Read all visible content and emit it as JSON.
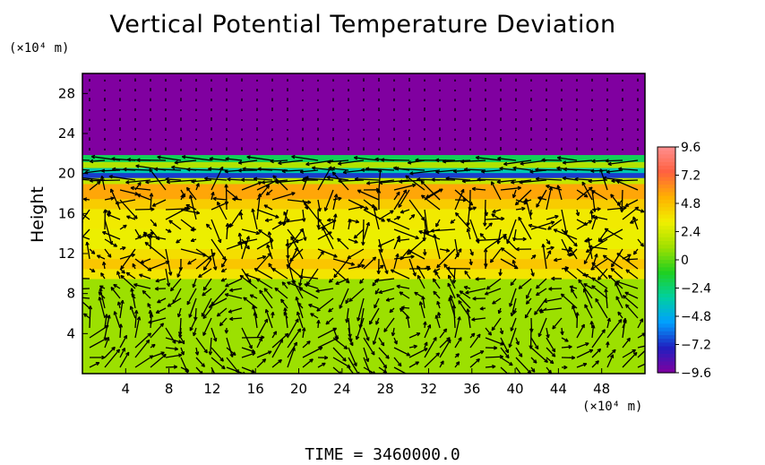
{
  "chart_data": {
    "type": "heatmap",
    "title": "Vertical Potential Temperature Deviation",
    "xlabel": "",
    "ylabel": "Height",
    "x_unit": "(×10⁴ m)",
    "y_unit": "(×10⁴ m)",
    "xlim": [
      0,
      52
    ],
    "ylim": [
      0,
      30
    ],
    "x_ticks": [
      4,
      8,
      12,
      16,
      20,
      24,
      28,
      32,
      36,
      40,
      44,
      48
    ],
    "y_ticks": [
      4,
      8,
      12,
      16,
      20,
      24,
      28
    ],
    "colorbar": {
      "ticks": [
        9.6,
        7.2,
        4.8,
        2.4,
        0,
        -2.4,
        -4.8,
        -7.2,
        -9.6
      ],
      "tick_labels": [
        "9.6",
        "7.2",
        "4.8",
        "2.4",
        "0",
        "−2.4",
        "−4.8",
        "−7.2",
        "−9.6"
      ],
      "range": [
        -9.6,
        9.6
      ],
      "colors": [
        "#8000a0",
        "#2020c0",
        "#00a0ff",
        "#00d0a0",
        "#20d020",
        "#a0e000",
        "#f0f000",
        "#ffb000",
        "#ff6040",
        "#ff9090"
      ]
    },
    "bands": [
      {
        "y0": 0,
        "y1": 9.5,
        "value": 1.0
      },
      {
        "y0": 9.5,
        "y1": 10.5,
        "value": 3.6
      },
      {
        "y0": 10.5,
        "y1": 11.5,
        "value": 4.6
      },
      {
        "y0": 11.5,
        "y1": 12.5,
        "value": 3.8
      },
      {
        "y0": 12.5,
        "y1": 14.5,
        "value": 3.1
      },
      {
        "y0": 14.5,
        "y1": 16.5,
        "value": 3.4
      },
      {
        "y0": 16.5,
        "y1": 17.5,
        "value": 4.4
      },
      {
        "y0": 17.5,
        "y1": 19.0,
        "value": 5.6
      },
      {
        "y0": 19.0,
        "y1": 19.6,
        "value": 2.0
      },
      {
        "y0": 19.6,
        "y1": 20.1,
        "value": -7.0
      },
      {
        "y0": 20.1,
        "y1": 20.6,
        "value": -3.5
      },
      {
        "y0": 20.6,
        "y1": 21.2,
        "value": 1.5
      },
      {
        "y0": 21.2,
        "y1": 21.9,
        "value": -2.0
      },
      {
        "y0": 21.9,
        "y1": 30,
        "value": -10.0
      }
    ],
    "vectors_note": "wind-field arrows overlaid on the heatmap"
  },
  "time_label": "TIME  =  3460000.0"
}
